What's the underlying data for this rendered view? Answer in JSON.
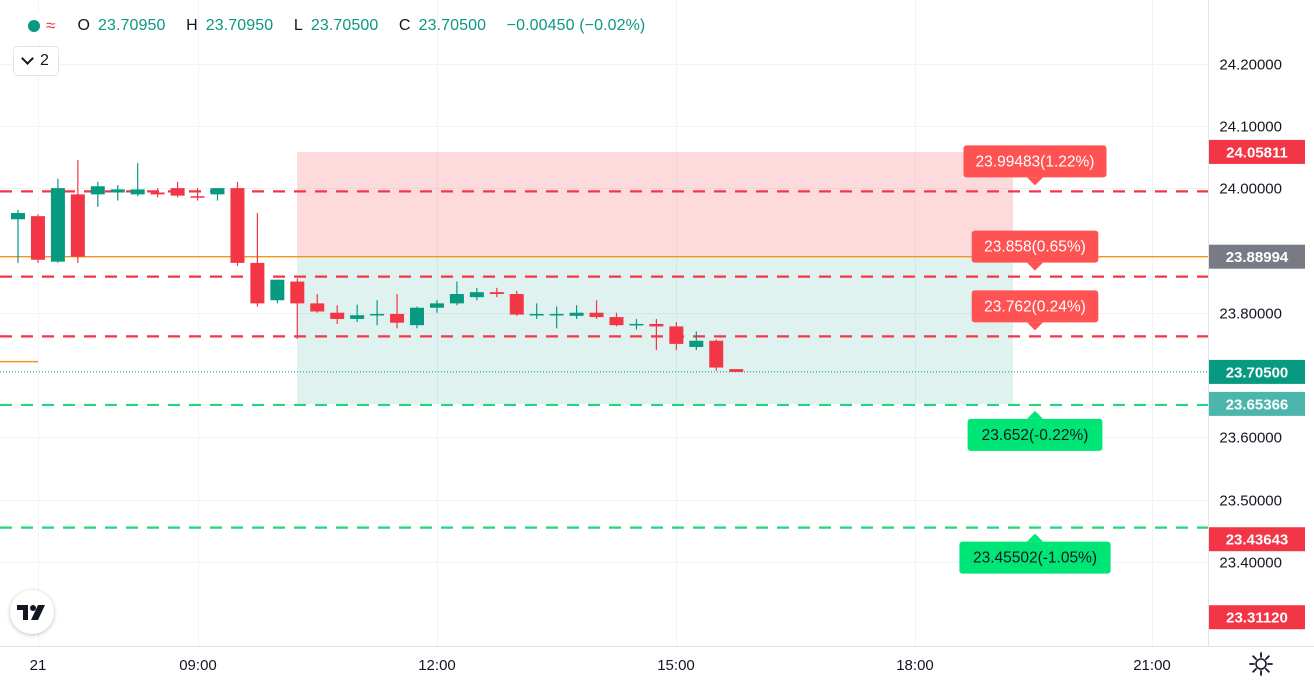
{
  "legend": {
    "ohlc": {
      "o_key": "O",
      "o_val": "23.70950",
      "h_key": "H",
      "h_val": "23.70950",
      "l_key": "L",
      "l_val": "23.70500",
      "c_key": "C",
      "c_val": "23.70500",
      "change": "−0.00450 (−0.02%)"
    },
    "wave_icon": "≈",
    "collapse_count": "2"
  },
  "colors": {
    "up": "#089981",
    "down": "#f23645",
    "orange": "#f7931a",
    "grid": "#f0f3fa"
  },
  "chart_data": {
    "type": "candlestick",
    "yaxis": {
      "ylim": [
        23.265,
        24.302
      ],
      "ticks": [
        "24.20000",
        "24.10000",
        "24.00000",
        "23.80000",
        "23.60000",
        "23.50000",
        "23.40000"
      ]
    },
    "xaxis": {
      "ticks": [
        "21",
        "09:00",
        "12:00",
        "15:00",
        "18:00",
        "21:00"
      ]
    },
    "candles": [
      {
        "x": 0,
        "o": 23.95,
        "h": 23.965,
        "l": 23.88,
        "c": 23.96
      },
      {
        "x": 1,
        "o": 23.955,
        "h": 23.958,
        "l": 23.88,
        "c": 23.885
      },
      {
        "x": 2,
        "o": 23.882,
        "h": 24.015,
        "l": 23.88,
        "c": 24.0
      },
      {
        "x": 3,
        "o": 23.99,
        "h": 24.045,
        "l": 23.88,
        "c": 23.89
      },
      {
        "x": 4,
        "o": 23.99,
        "h": 24.01,
        "l": 23.97,
        "c": 24.003
      },
      {
        "x": 5,
        "o": 23.993,
        "h": 24.005,
        "l": 23.98,
        "c": 23.998
      },
      {
        "x": 6,
        "o": 23.99,
        "h": 24.04,
        "l": 23.987,
        "c": 23.998
      },
      {
        "x": 7,
        "o": 23.993,
        "h": 24.0,
        "l": 23.985,
        "c": 23.99
      },
      {
        "x": 8,
        "o": 24.0,
        "h": 24.01,
        "l": 23.985,
        "c": 23.988
      },
      {
        "x": 9,
        "o": 23.987,
        "h": 24.0,
        "l": 23.98,
        "c": 23.985
      },
      {
        "x": 10,
        "o": 23.99,
        "h": 24.0,
        "l": 23.98,
        "c": 24.0
      },
      {
        "x": 11,
        "o": 24.0,
        "h": 24.01,
        "l": 23.875,
        "c": 23.88
      },
      {
        "x": 12,
        "o": 23.88,
        "h": 23.96,
        "l": 23.81,
        "c": 23.815
      },
      {
        "x": 13,
        "o": 23.82,
        "h": 23.85,
        "l": 23.815,
        "c": 23.853
      },
      {
        "x": 14,
        "o": 23.85,
        "h": 23.855,
        "l": 23.758,
        "c": 23.815
      },
      {
        "x": 15,
        "o": 23.815,
        "h": 23.83,
        "l": 23.8,
        "c": 23.802
      },
      {
        "x": 16,
        "o": 23.8,
        "h": 23.812,
        "l": 23.782,
        "c": 23.79
      },
      {
        "x": 17,
        "o": 23.79,
        "h": 23.813,
        "l": 23.785,
        "c": 23.796
      },
      {
        "x": 18,
        "o": 23.798,
        "h": 23.82,
        "l": 23.78,
        "c": 23.798
      },
      {
        "x": 19,
        "o": 23.798,
        "h": 23.83,
        "l": 23.775,
        "c": 23.784
      },
      {
        "x": 20,
        "o": 23.78,
        "h": 23.81,
        "l": 23.775,
        "c": 23.808
      },
      {
        "x": 21,
        "o": 23.808,
        "h": 23.82,
        "l": 23.8,
        "c": 23.815
      },
      {
        "x": 22,
        "o": 23.815,
        "h": 23.85,
        "l": 23.812,
        "c": 23.83
      },
      {
        "x": 23,
        "o": 23.825,
        "h": 23.84,
        "l": 23.82,
        "c": 23.833
      },
      {
        "x": 24,
        "o": 23.833,
        "h": 23.84,
        "l": 23.825,
        "c": 23.83
      },
      {
        "x": 25,
        "o": 23.83,
        "h": 23.835,
        "l": 23.795,
        "c": 23.797
      },
      {
        "x": 26,
        "o": 23.796,
        "h": 23.815,
        "l": 23.79,
        "c": 23.798
      },
      {
        "x": 27,
        "o": 23.797,
        "h": 23.81,
        "l": 23.775,
        "c": 23.798
      },
      {
        "x": 28,
        "o": 23.795,
        "h": 23.812,
        "l": 23.79,
        "c": 23.8
      },
      {
        "x": 29,
        "o": 23.8,
        "h": 23.82,
        "l": 23.79,
        "c": 23.793
      },
      {
        "x": 30,
        "o": 23.793,
        "h": 23.8,
        "l": 23.778,
        "c": 23.78
      },
      {
        "x": 31,
        "o": 23.78,
        "h": 23.79,
        "l": 23.773,
        "c": 23.782
      },
      {
        "x": 32,
        "o": 23.782,
        "h": 23.79,
        "l": 23.74,
        "c": 23.778
      },
      {
        "x": 33,
        "o": 23.778,
        "h": 23.785,
        "l": 23.74,
        "c": 23.75
      },
      {
        "x": 34,
        "o": 23.745,
        "h": 23.77,
        "l": 23.74,
        "c": 23.755
      },
      {
        "x": 35,
        "o": 23.755,
        "h": 23.757,
        "l": 23.707,
        "c": 23.712
      },
      {
        "x": 36,
        "o": 23.7095,
        "h": 23.7095,
        "l": 23.705,
        "c": 23.705
      }
    ],
    "horizontal_lines": [
      {
        "price": 23.99483,
        "color": "down",
        "style": "dashed",
        "label": "23.99483(1.22%)"
      },
      {
        "price": 23.858,
        "color": "down",
        "style": "dashed",
        "label": "23.858(0.65%)"
      },
      {
        "price": 23.762,
        "color": "down",
        "style": "dashed",
        "label": "23.762(0.24%)"
      },
      {
        "price": 23.652,
        "color": "up",
        "style": "dashed",
        "label": "23.652(-0.22%)"
      },
      {
        "price": 23.45502,
        "color": "up",
        "style": "dashed",
        "label": "23.45502(-1.05%)"
      }
    ],
    "entry_line": {
      "price": 23.88994
    },
    "position_tool": {
      "entry": 23.88994,
      "stop": 24.05811,
      "target": 23.65366
    },
    "price_badges": [
      {
        "text": "24.05811",
        "price": 24.05811,
        "color": "#f23645"
      },
      {
        "text": "23.88994",
        "price": 23.88994,
        "color": "#787b86"
      },
      {
        "text": "23.70500",
        "price": 23.705,
        "color": "#089981"
      },
      {
        "text": "23.65366",
        "price": 23.65366,
        "color": "#4db6ac"
      },
      {
        "text": "23.43643",
        "price": 23.43643,
        "color": "#f23645"
      },
      {
        "text": "23.31120",
        "price": 23.3112,
        "color": "#f23645"
      }
    ]
  }
}
